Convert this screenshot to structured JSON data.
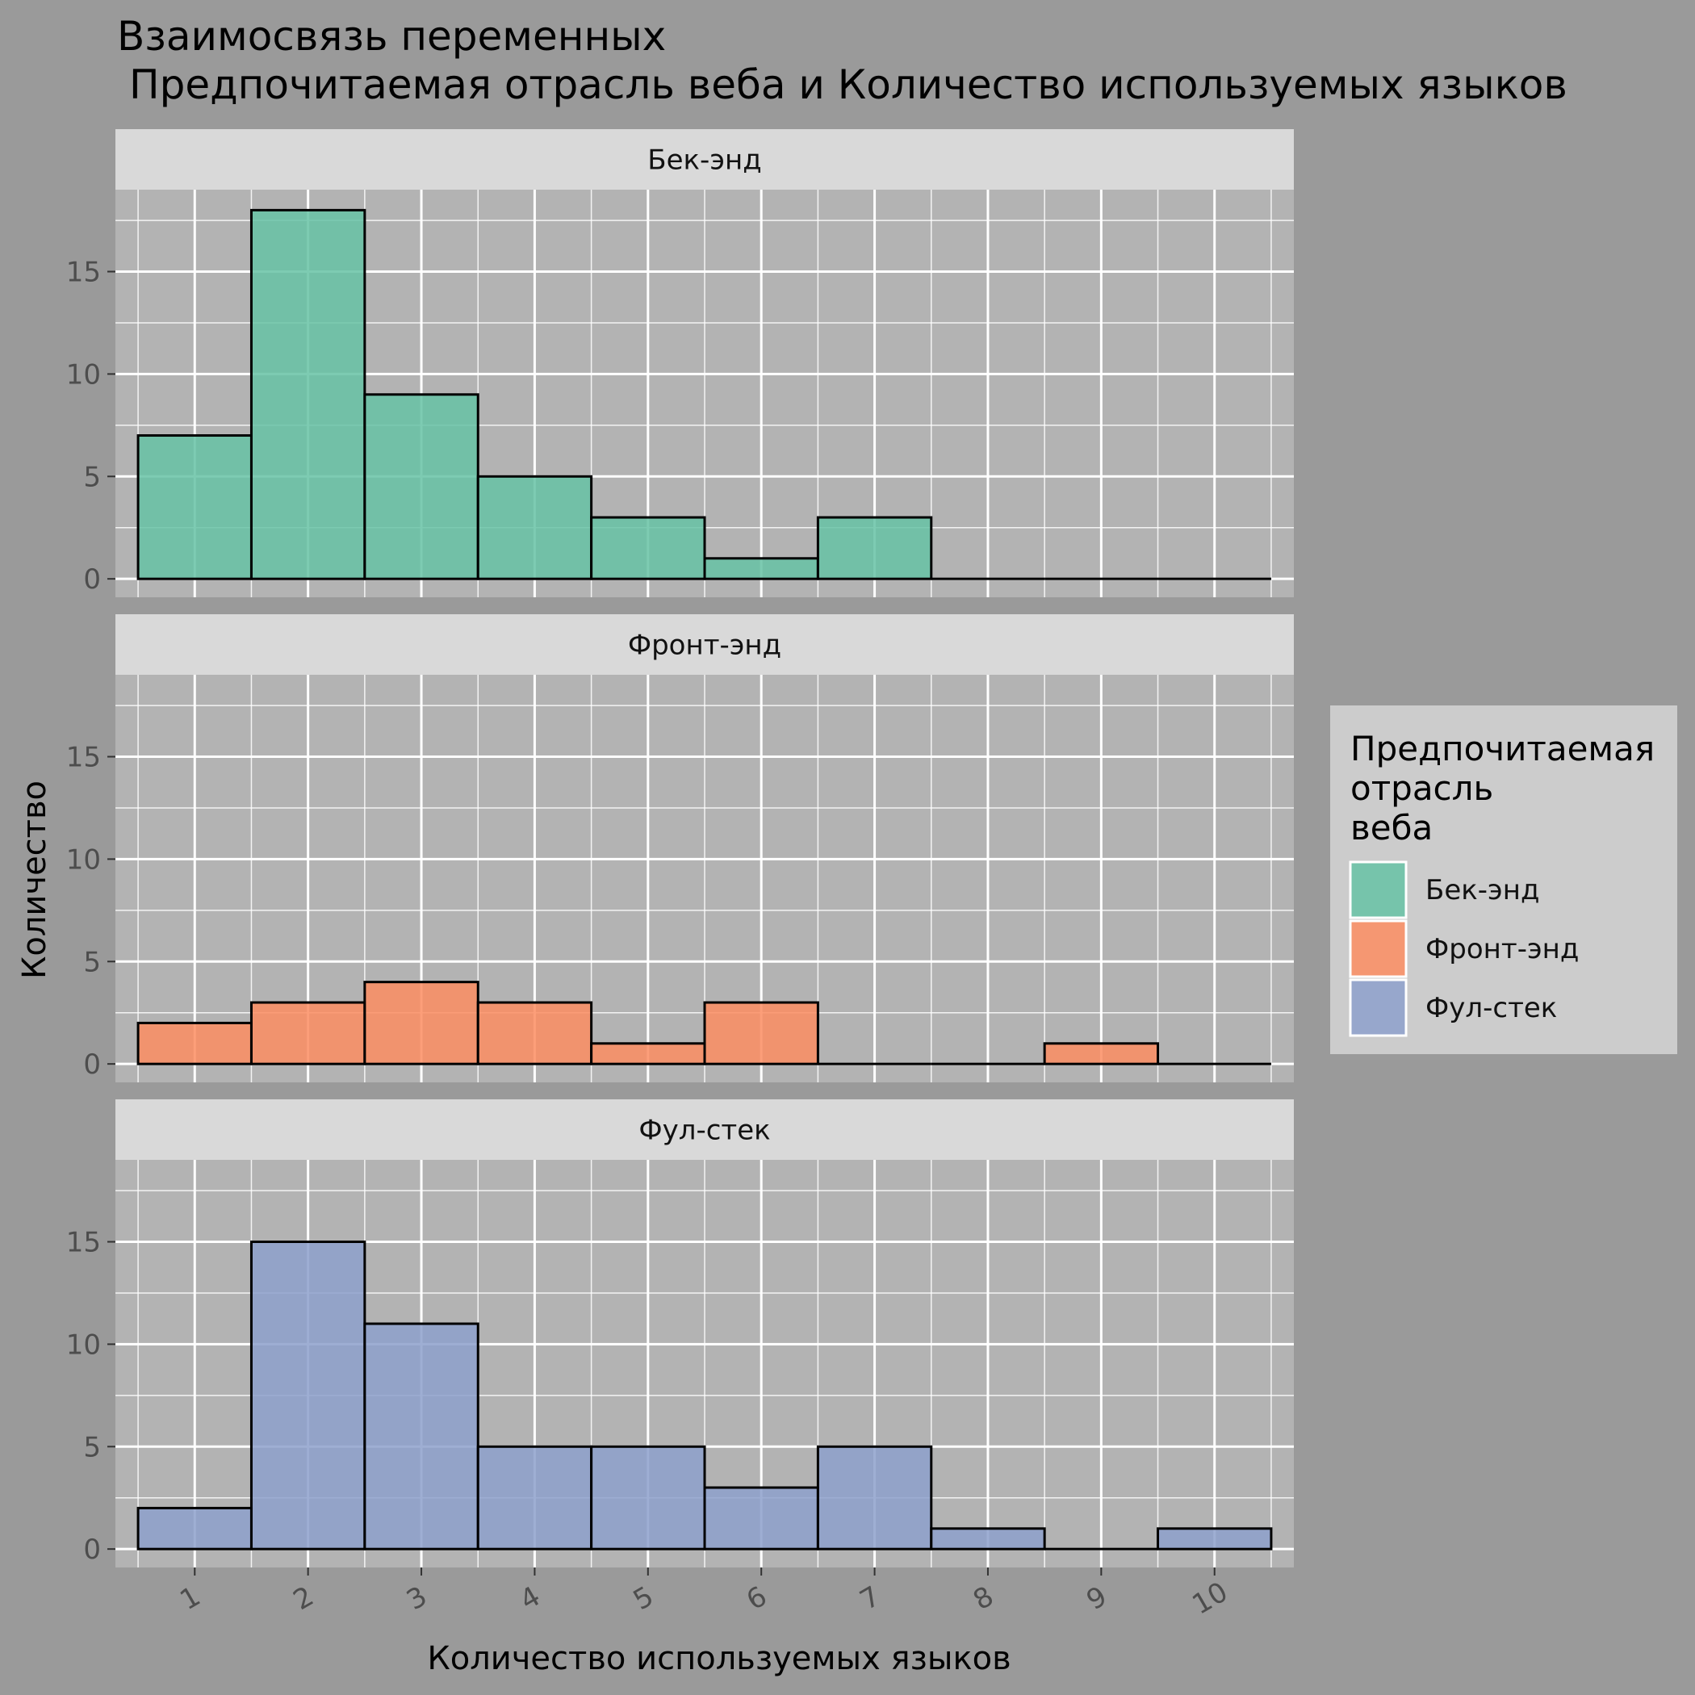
{
  "chart_data": {
    "type": "bar",
    "title": "Взаимосвязь переменных",
    "subtitle": "Предпочитаемая отрасль веба и Количество используемых языков",
    "xlabel": "Количество используемых языков",
    "ylabel": "Количество",
    "x": [
      1,
      2,
      3,
      4,
      5,
      6,
      7,
      8,
      9,
      10
    ],
    "x_tick_labels": [
      "1",
      "2",
      "3",
      "4",
      "5",
      "6",
      "7",
      "8",
      "9",
      "10"
    ],
    "xlim": [
      0.5,
      10.5
    ],
    "ylim": [
      0,
      18
    ],
    "y_ticks": [
      0,
      5,
      10,
      15
    ],
    "y_tick_labels": [
      "0",
      "5",
      "10",
      "15"
    ],
    "grid": true,
    "legend_position": "right",
    "legend_title": "Предпочитаемая\nотрасль\nвеба",
    "series": [
      {
        "name": "Бек-энд",
        "color": "#66c2a5",
        "values": [
          7,
          18,
          9,
          5,
          3,
          1,
          3,
          0,
          0,
          0
        ]
      },
      {
        "name": "Фронт-энд",
        "color": "#fc8d62",
        "values": [
          2,
          3,
          4,
          3,
          1,
          3,
          0,
          0,
          1,
          0
        ]
      },
      {
        "name": "Фул-стек",
        "color": "#8da0cb",
        "values": [
          2,
          15,
          11,
          5,
          5,
          3,
          5,
          1,
          0,
          1
        ]
      }
    ]
  },
  "colors": {
    "background": "#9a9a9a",
    "panel": "#b3b3b3",
    "strip": "#d9d9d9",
    "legend_bg": "#cccccc",
    "grid": "#ffffff",
    "bar_outline": "#000000"
  }
}
